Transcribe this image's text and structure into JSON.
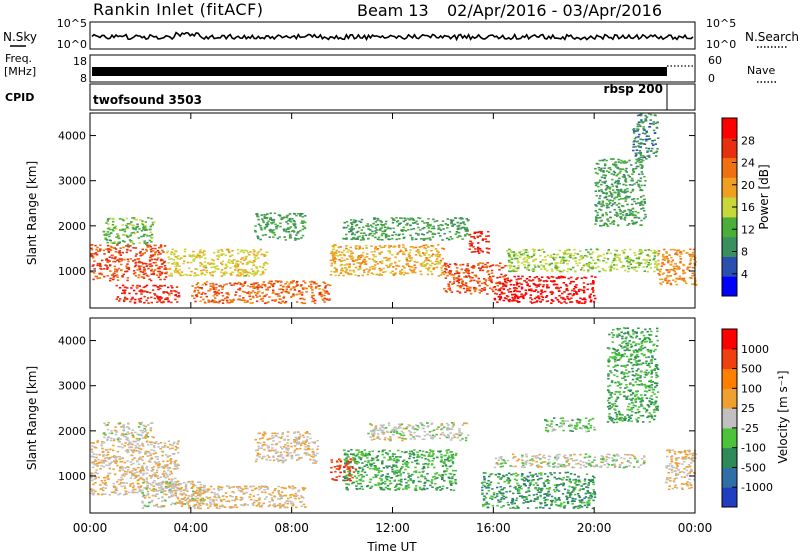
{
  "header": {
    "station": "Rankin Inlet (fitACF)",
    "beam": "Beam 13",
    "date_range": "02/Apr/2016 - 03/Apr/2016"
  },
  "nsky_panel": {
    "left_label": "N.Sky",
    "right_label": "N.Search",
    "left_ticks": [
      "10^5",
      "10^0"
    ],
    "right_ticks": [
      "10^5",
      "10^0"
    ]
  },
  "freq_panel": {
    "left_label_line1": "Freq.",
    "left_label_line2": "[MHz]",
    "left_ticks": [
      "18",
      "8"
    ],
    "right_label": "Nave",
    "right_ticks": [
      "60",
      "0"
    ]
  },
  "cpid_panel": {
    "label": "CPID",
    "programs": [
      "twofsound 3503",
      "rbsp 200"
    ]
  },
  "power_panel": {
    "ylabel": "Slant Range [km]",
    "yticks": [
      "4000",
      "3000",
      "2000",
      "1000"
    ],
    "colorbar_label": "Power [dB]",
    "colorbar_ticks": [
      "28",
      "24",
      "20",
      "16",
      "12",
      "8",
      "4"
    ],
    "colors": [
      "#0000ff",
      "#2b4fb0",
      "#3a8f5e",
      "#4cae3a",
      "#c8d83a",
      "#f0a020",
      "#f07010",
      "#e83010",
      "#ff0000"
    ]
  },
  "velocity_panel": {
    "ylabel": "Slant Range [km]",
    "yticks": [
      "4000",
      "3000",
      "2000",
      "1000"
    ],
    "colorbar_label": "Velocity [m s⁻¹]",
    "colorbar_ticks": [
      "1000",
      "500",
      "100",
      "25",
      "-25",
      "-100",
      "-500",
      "-1000"
    ],
    "colors": [
      "#1f3fbf",
      "#2f6fa8",
      "#2e8a58",
      "#4cc23a",
      "#c0c0c0",
      "#f0a030",
      "#ff7f00",
      "#f04010",
      "#ff0000"
    ]
  },
  "xaxis": {
    "ticks": [
      "00:00",
      "04:00",
      "08:00",
      "12:00",
      "16:00",
      "20:00",
      "00:00"
    ],
    "label": "Time UT"
  },
  "chart_data": {
    "type": "heatmap",
    "title": "Rankin Inlet (fitACF) Beam 13 02/Apr/2016 - 03/Apr/2016",
    "xlabel": "Time UT",
    "ylabel": "Slant Range [km]",
    "x_range_hours": [
      0,
      24
    ],
    "y_range_km": [
      180,
      4500
    ],
    "panels": [
      {
        "name": "Power",
        "unit": "dB",
        "scale": [
          0,
          30
        ],
        "regions": [
          {
            "t": [
              0.0,
              3.0
            ],
            "r": [
              800,
              1600
            ],
            "v": 24
          },
          {
            "t": [
              0.5,
              2.5
            ],
            "r": [
              1600,
              2200
            ],
            "v": 12
          },
          {
            "t": [
              1.0,
              3.5
            ],
            "r": [
              300,
              700
            ],
            "v": 26
          },
          {
            "t": [
              3.0,
              7.0
            ],
            "r": [
              900,
              1500
            ],
            "v": 16
          },
          {
            "t": [
              4.0,
              9.5
            ],
            "r": [
              300,
              800
            ],
            "v": 22
          },
          {
            "t": [
              6.5,
              8.5
            ],
            "r": [
              1700,
              2300
            ],
            "v": 10
          },
          {
            "t": [
              9.5,
              14.0
            ],
            "r": [
              900,
              1600
            ],
            "v": 18
          },
          {
            "t": [
              10.0,
              15.0
            ],
            "r": [
              1700,
              2200
            ],
            "v": 10
          },
          {
            "t": [
              14.0,
              16.5
            ],
            "r": [
              500,
              1200
            ],
            "v": 24
          },
          {
            "t": [
              15.0,
              15.8
            ],
            "r": [
              1400,
              1900
            ],
            "v": 26
          },
          {
            "t": [
              16.0,
              20.0
            ],
            "r": [
              300,
              900
            ],
            "v": 28
          },
          {
            "t": [
              16.5,
              22.5
            ],
            "r": [
              1000,
              1500
            ],
            "v": 14
          },
          {
            "t": [
              20.0,
              22.0
            ],
            "r": [
              2000,
              3500
            ],
            "v": 10
          },
          {
            "t": [
              21.5,
              22.5
            ],
            "r": [
              3500,
              4500
            ],
            "v": 8
          },
          {
            "t": [
              22.5,
              24.0
            ],
            "r": [
              700,
              1500
            ],
            "v": 20
          }
        ]
      },
      {
        "name": "Velocity",
        "unit": "m s⁻¹",
        "scale": [
          -1000,
          1000
        ],
        "regions": [
          {
            "t": [
              0.0,
              3.5
            ],
            "r": [
              600,
              1800
            ],
            "v": 100
          },
          {
            "t": [
              0.5,
              2.5
            ],
            "r": [
              1800,
              2200
            ],
            "v": 0
          },
          {
            "t": [
              2.0,
              4.5
            ],
            "r": [
              300,
              900
            ],
            "v": 0
          },
          {
            "t": [
              3.5,
              8.5
            ],
            "r": [
              300,
              800
            ],
            "v": 150
          },
          {
            "t": [
              6.5,
              9.0
            ],
            "r": [
              1300,
              2000
            ],
            "v": 100
          },
          {
            "t": [
              9.5,
              10.5
            ],
            "r": [
              900,
              1400
            ],
            "v": 700
          },
          {
            "t": [
              10.0,
              14.5
            ],
            "r": [
              700,
              1600
            ],
            "v": -300
          },
          {
            "t": [
              11.0,
              15.0
            ],
            "r": [
              1800,
              2200
            ],
            "v": 0
          },
          {
            "t": [
              15.5,
              20.0
            ],
            "r": [
              300,
              1100
            ],
            "v": -400
          },
          {
            "t": [
              16.0,
              22.0
            ],
            "r": [
              1200,
              1500
            ],
            "v": 0
          },
          {
            "t": [
              18.0,
              20.0
            ],
            "r": [
              2000,
              2300
            ],
            "v": -200
          },
          {
            "t": [
              20.5,
              22.5
            ],
            "r": [
              2200,
              4300
            ],
            "v": -300
          },
          {
            "t": [
              22.8,
              24.0
            ],
            "r": [
              700,
              1600
            ],
            "v": 100
          }
        ]
      }
    ]
  }
}
